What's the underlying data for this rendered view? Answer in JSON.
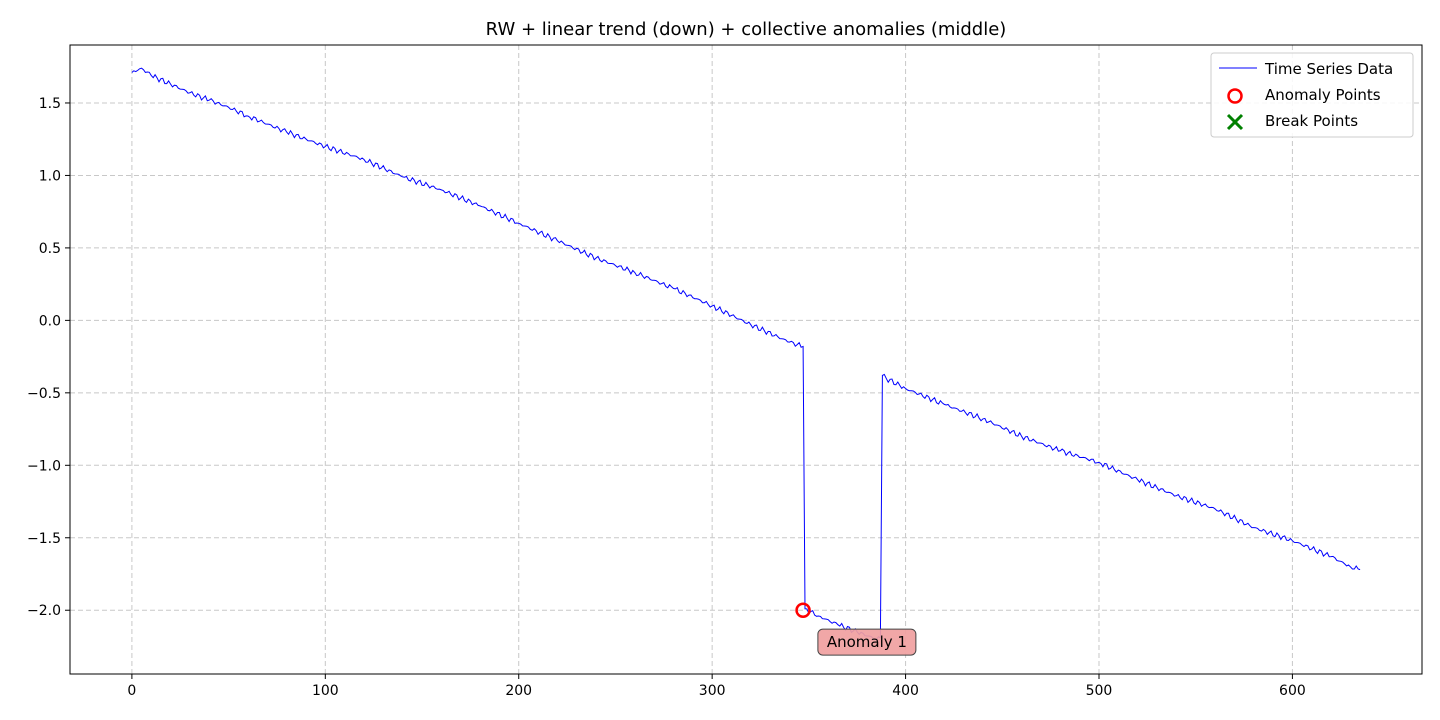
{
  "chart_data": {
    "type": "line",
    "title": "RW + linear trend (down) + collective anomalies (middle)",
    "xlabel": "",
    "ylabel": "",
    "xlim": [
      -32,
      667
    ],
    "ylim": [
      -2.44,
      1.9
    ],
    "xticks": [
      0,
      100,
      200,
      300,
      400,
      500,
      600
    ],
    "yticks": [
      -2.0,
      -1.5,
      -1.0,
      -0.5,
      0.0,
      0.5,
      1.0,
      1.5
    ],
    "xtick_labels": [
      "0",
      "100",
      "200",
      "300",
      "400",
      "500",
      "600"
    ],
    "ytick_labels": [
      "−2.0",
      "−1.5",
      "−1.0",
      "−0.5",
      "0.0",
      "0.5",
      "1.0",
      "1.5"
    ],
    "grid": true,
    "legend_position": "top-right",
    "series": [
      {
        "name": "Time Series Data",
        "color": "#0000ff",
        "x": [
          0,
          5,
          10,
          20,
          30,
          40,
          50,
          60,
          80,
          100,
          120,
          140,
          160,
          180,
          200,
          220,
          240,
          260,
          280,
          300,
          320,
          340,
          347,
          348,
          355,
          365,
          375,
          385,
          387,
          388,
          390,
          400,
          420,
          440,
          460,
          480,
          500,
          520,
          540,
          560,
          580,
          600,
          620,
          630,
          635
        ],
        "y": [
          1.71,
          1.74,
          1.69,
          1.63,
          1.57,
          1.52,
          1.47,
          1.41,
          1.3,
          1.2,
          1.11,
          0.99,
          0.9,
          0.79,
          0.67,
          0.55,
          0.43,
          0.33,
          0.22,
          0.1,
          -0.03,
          -0.15,
          -0.18,
          -1.99,
          -2.04,
          -2.1,
          -2.15,
          -2.2,
          -2.19,
          -0.38,
          -0.4,
          -0.47,
          -0.58,
          -0.68,
          -0.8,
          -0.9,
          -0.98,
          -1.1,
          -1.21,
          -1.3,
          -1.43,
          -1.52,
          -1.63,
          -1.7,
          -1.72
        ]
      },
      {
        "name": "Anomaly Points",
        "color": "#ff0000",
        "marker": "circle-hollow",
        "x": [
          347
        ],
        "y": [
          -2.0
        ]
      },
      {
        "name": "Break Points",
        "color": "#008000",
        "marker": "x",
        "x": [],
        "y": []
      }
    ],
    "annotations": [
      {
        "text": "Anomaly 1",
        "x": 380,
        "y": -2.22,
        "background": "#f0a0a0"
      }
    ]
  }
}
